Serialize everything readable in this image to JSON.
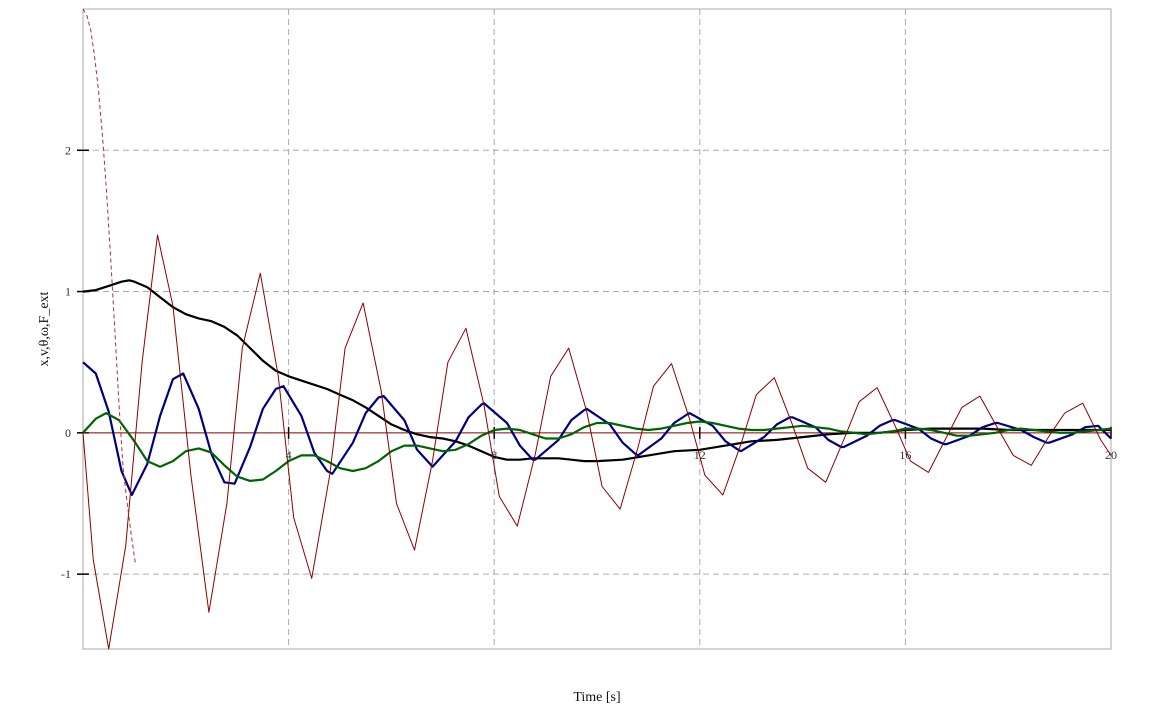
{
  "chart_data": {
    "type": "line",
    "xlabel": "Time [s]",
    "ylabel": "x,v,θ,ω,F_ext",
    "xlim": [
      0,
      20
    ],
    "ylim": [
      -1.53,
      3.0
    ],
    "x_ticks": [
      4,
      8,
      12,
      16,
      20
    ],
    "y_ticks": [
      -1,
      0,
      1,
      2
    ],
    "grid": true,
    "colors": {
      "black_series": "#000000",
      "blue_series": "#00007f",
      "green_series": "#006400",
      "red_series": "#8b0000",
      "red_dashed_series": "#b03030",
      "grid": "#aaaaaa",
      "zero_line": "#7f0000"
    },
    "series": [
      {
        "color": "#000000",
        "style": "solid",
        "x": [
          0,
          0.25,
          0.5,
          0.75,
          0.9,
          1.0,
          1.25,
          1.5,
          1.75,
          2.0,
          2.25,
          2.5,
          2.75,
          3.0,
          3.25,
          3.5,
          3.75,
          4.0,
          4.25,
          4.5,
          4.75,
          5.0,
          5.25,
          5.5,
          5.75,
          6.0,
          6.25,
          6.5,
          6.75,
          7.0,
          7.25,
          7.5,
          7.75,
          8.0,
          8.25,
          8.5,
          8.75,
          9.0,
          9.25,
          9.5,
          9.75,
          10.0,
          10.5,
          11.0,
          11.5,
          12.0,
          12.5,
          13.0,
          13.5,
          14.0,
          14.5,
          15.0,
          15.5,
          16.0,
          16.5,
          17.0,
          17.5,
          18.0,
          18.5,
          19.0,
          19.5,
          20.0
        ],
        "y": [
          1.0,
          1.01,
          1.04,
          1.07,
          1.08,
          1.07,
          1.03,
          0.96,
          0.89,
          0.84,
          0.81,
          0.79,
          0.75,
          0.69,
          0.6,
          0.51,
          0.44,
          0.4,
          0.37,
          0.34,
          0.31,
          0.27,
          0.23,
          0.18,
          0.12,
          0.06,
          0.02,
          -0.01,
          -0.03,
          -0.04,
          -0.06,
          -0.09,
          -0.13,
          -0.17,
          -0.19,
          -0.19,
          -0.18,
          -0.18,
          -0.18,
          -0.19,
          -0.2,
          -0.2,
          -0.19,
          -0.16,
          -0.13,
          -0.12,
          -0.09,
          -0.06,
          -0.05,
          -0.03,
          -0.01,
          0.0,
          0.0,
          0.02,
          0.03,
          0.03,
          0.03,
          0.02,
          0.02,
          0.02,
          0.02,
          0.02
        ]
      },
      {
        "color": "#00007f",
        "style": "solid",
        "x": [
          0,
          0.25,
          0.5,
          0.75,
          0.95,
          1.25,
          1.5,
          1.75,
          1.95,
          2.25,
          2.5,
          2.75,
          2.95,
          3.25,
          3.5,
          3.75,
          3.9,
          4.25,
          4.5,
          4.75,
          4.85,
          5.25,
          5.5,
          5.75,
          5.85,
          6.25,
          6.5,
          6.75,
          6.8,
          7.25,
          7.5,
          7.75,
          7.8,
          8.25,
          8.5,
          8.75,
          8.8,
          9.25,
          9.5,
          9.75,
          9.8,
          10.25,
          10.5,
          10.75,
          10.8,
          11.25,
          11.5,
          11.75,
          11.8,
          12.25,
          12.5,
          12.75,
          12.8,
          13.25,
          13.5,
          13.75,
          13.8,
          14.25,
          14.5,
          14.75,
          14.8,
          15.25,
          15.5,
          15.75,
          15.8,
          16.25,
          16.5,
          16.75,
          16.8,
          17.25,
          17.5,
          17.75,
          17.8,
          18.25,
          18.5,
          18.75,
          18.8,
          19.25,
          19.5,
          19.75,
          20.0
        ],
        "y": [
          0.5,
          0.42,
          0.15,
          -0.27,
          -0.44,
          -0.22,
          0.12,
          0.38,
          0.42,
          0.17,
          -0.15,
          -0.35,
          -0.36,
          -0.1,
          0.17,
          0.31,
          0.33,
          0.12,
          -0.14,
          -0.27,
          -0.29,
          -0.07,
          0.14,
          0.25,
          0.26,
          0.09,
          -0.12,
          -0.22,
          -0.24,
          -0.06,
          0.11,
          0.2,
          0.21,
          0.07,
          -0.09,
          -0.19,
          -0.19,
          -0.05,
          0.09,
          0.16,
          0.17,
          0.06,
          -0.07,
          -0.15,
          -0.16,
          -0.04,
          0.07,
          0.13,
          0.14,
          0.05,
          -0.06,
          -0.12,
          -0.13,
          -0.03,
          0.06,
          0.11,
          0.11,
          0.04,
          -0.05,
          -0.1,
          -0.1,
          -0.02,
          0.05,
          0.09,
          0.09,
          0.03,
          -0.04,
          -0.08,
          -0.08,
          -0.02,
          0.04,
          0.07,
          0.07,
          0.02,
          -0.03,
          -0.07,
          -0.07,
          -0.01,
          0.04,
          0.05,
          -0.04
        ]
      },
      {
        "color": "#006400",
        "style": "solid",
        "x": [
          0,
          0.25,
          0.45,
          0.7,
          1.0,
          1.25,
          1.5,
          1.75,
          2.0,
          2.25,
          2.5,
          2.75,
          3.0,
          3.25,
          3.5,
          3.75,
          4.0,
          4.25,
          4.5,
          4.75,
          5.0,
          5.25,
          5.5,
          5.75,
          6.0,
          6.25,
          6.5,
          6.75,
          7.0,
          7.25,
          7.5,
          7.75,
          8.0,
          8.25,
          8.5,
          8.75,
          9.0,
          9.25,
          9.5,
          9.75,
          10.0,
          10.25,
          10.5,
          10.75,
          11.0,
          11.25,
          11.5,
          11.75,
          12.0,
          12.25,
          12.5,
          12.75,
          13.0,
          13.25,
          13.5,
          13.75,
          14.0,
          14.25,
          14.5,
          14.75,
          15.0,
          15.25,
          15.5,
          15.75,
          16.0,
          16.25,
          16.5,
          16.75,
          17.0,
          17.25,
          17.5,
          17.75,
          18.0,
          18.25,
          18.5,
          18.75,
          19.0,
          19.25,
          19.5,
          19.75,
          20.0
        ],
        "y": [
          0.0,
          0.1,
          0.14,
          0.09,
          -0.06,
          -0.2,
          -0.24,
          -0.2,
          -0.13,
          -0.11,
          -0.14,
          -0.23,
          -0.31,
          -0.34,
          -0.33,
          -0.27,
          -0.2,
          -0.16,
          -0.16,
          -0.2,
          -0.25,
          -0.27,
          -0.25,
          -0.2,
          -0.13,
          -0.09,
          -0.09,
          -0.11,
          -0.13,
          -0.12,
          -0.08,
          -0.02,
          0.02,
          0.03,
          0.02,
          -0.01,
          -0.04,
          -0.04,
          -0.01,
          0.04,
          0.07,
          0.07,
          0.05,
          0.03,
          0.02,
          0.03,
          0.05,
          0.07,
          0.08,
          0.07,
          0.05,
          0.03,
          0.02,
          0.02,
          0.03,
          0.04,
          0.05,
          0.04,
          0.03,
          0.01,
          0.0,
          -0.01,
          0.0,
          0.01,
          0.03,
          0.03,
          0.02,
          0.0,
          -0.02,
          -0.02,
          -0.01,
          0.0,
          0.02,
          0.03,
          0.02,
          0.01,
          0.0,
          0.0,
          0.01,
          0.02,
          0.03
        ]
      },
      {
        "color": "#8b0000",
        "style": "solid",
        "thin": true,
        "x": [
          0,
          0.2,
          0.5,
          0.83,
          1.15,
          1.45,
          1.75,
          2.1,
          2.45,
          2.8,
          3.1,
          3.45,
          3.8,
          4.1,
          4.45,
          4.8,
          5.1,
          5.45,
          5.8,
          6.1,
          6.45,
          6.8,
          7.1,
          7.45,
          7.8,
          8.1,
          8.45,
          8.8,
          9.1,
          9.45,
          9.8,
          10.1,
          10.45,
          10.8,
          11.1,
          11.45,
          11.8,
          12.1,
          12.45,
          12.8,
          13.1,
          13.45,
          13.8,
          14.1,
          14.45,
          14.8,
          15.1,
          15.45,
          15.8,
          16.1,
          16.45,
          16.8,
          17.1,
          17.45,
          17.8,
          18.1,
          18.45,
          18.8,
          19.1,
          19.45,
          19.8,
          20.0
        ],
        "y": [
          0.0,
          -0.9,
          -1.53,
          -0.8,
          0.5,
          1.4,
          0.9,
          -0.3,
          -1.27,
          -0.5,
          0.6,
          1.13,
          0.4,
          -0.6,
          -1.03,
          -0.3,
          0.6,
          0.92,
          0.3,
          -0.5,
          -0.83,
          -0.2,
          0.5,
          0.74,
          0.2,
          -0.45,
          -0.66,
          -0.15,
          0.4,
          0.6,
          0.15,
          -0.38,
          -0.54,
          -0.1,
          0.33,
          0.49,
          0.1,
          -0.3,
          -0.44,
          -0.08,
          0.27,
          0.39,
          0.06,
          -0.25,
          -0.35,
          -0.05,
          0.22,
          0.32,
          0.05,
          -0.2,
          -0.28,
          -0.03,
          0.18,
          0.26,
          0.03,
          -0.16,
          -0.23,
          -0.02,
          0.14,
          0.21,
          -0.05,
          -0.16
        ]
      },
      {
        "color": "#b03030",
        "style": "dashed",
        "thin": true,
        "x": [
          0,
          0.08,
          0.15,
          0.22,
          0.3,
          0.38,
          0.46,
          0.54,
          0.62,
          0.7,
          0.78,
          0.86,
          0.93,
          1.0,
          1.02
        ],
        "y": [
          3.0,
          2.95,
          2.85,
          2.68,
          2.43,
          2.1,
          1.7,
          1.22,
          0.72,
          0.2,
          -0.25,
          -0.5,
          -0.7,
          -0.88,
          -0.92
        ]
      }
    ]
  }
}
